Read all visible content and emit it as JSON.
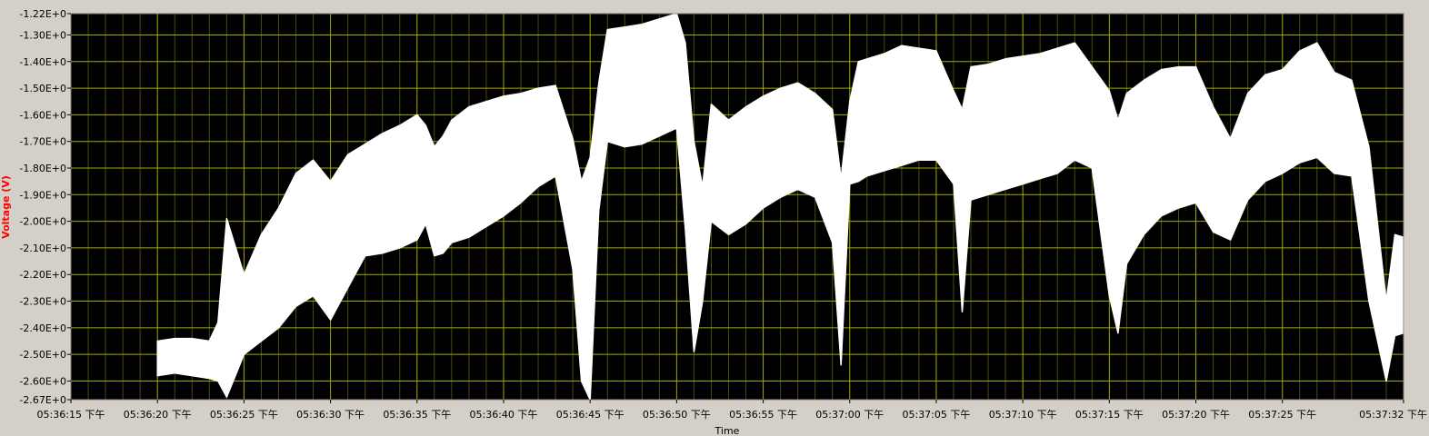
{
  "colors": {
    "frame": "#d4d0c8",
    "plot_background": "#000000",
    "grid_major": "#a8a800",
    "grid_minor": "#4a4a10",
    "trace": "#ffffff",
    "ylabel": "#ff0000",
    "axis_text": "#000000"
  },
  "chart_data": {
    "type": "area",
    "title": "",
    "xlabel": "Time",
    "ylabel": "Voltage (V)",
    "ylim": [
      -2.67,
      -1.22
    ],
    "xlim_seconds_past_17_36": [
      15,
      92
    ],
    "grid": true,
    "y_ticks": [
      "-1.22E+0",
      "-1.30E+0",
      "-1.40E+0",
      "-1.50E+0",
      "-1.60E+0",
      "-1.70E+0",
      "-1.80E+0",
      "-1.90E+0",
      "-2.00E+0",
      "-2.10E+0",
      "-2.20E+0",
      "-2.30E+0",
      "-2.40E+0",
      "-2.50E+0",
      "-2.60E+0",
      "-2.67E+0"
    ],
    "x_ticks": [
      "05:36:15 下午",
      "05:36:20 下午",
      "05:36:25 下午",
      "05:36:30 下午",
      "05:36:35 下午",
      "05:36:40 下午",
      "05:36:45 下午",
      "05:36:50 下午",
      "05:36:55 下午",
      "05:37:00 下午",
      "05:37:05 下午",
      "05:37:10 下午",
      "05:37:15 下午",
      "05:37:20 下午",
      "05:37:25 下午",
      "05:37:32 下午"
    ],
    "series": [
      {
        "x": [
          20,
          21,
          22,
          23,
          23.5,
          24,
          25,
          26,
          27,
          28,
          29,
          30,
          31,
          32,
          33,
          34,
          35,
          35.5,
          36,
          36.5,
          37,
          38,
          39,
          40,
          41,
          42,
          43,
          44,
          44.5,
          45,
          45.5,
          46,
          47,
          48,
          49,
          50,
          50.5,
          51,
          51.5,
          52,
          53,
          54,
          55,
          56,
          57,
          58,
          59,
          59.5,
          60,
          60.5,
          61,
          62,
          63,
          64,
          65,
          66,
          66.5,
          67,
          68,
          69,
          70,
          71,
          72,
          73,
          74,
          75,
          75.5,
          76,
          77,
          78,
          79,
          80,
          81,
          82,
          83,
          84,
          85,
          86,
          87,
          88,
          89,
          90,
          91,
          91.5,
          92
        ],
        "upper": [
          -2.45,
          -2.44,
          -2.44,
          -2.45,
          -2.38,
          -1.99,
          -2.2,
          -2.05,
          -1.95,
          -1.82,
          -1.77,
          -1.85,
          -1.75,
          -1.71,
          -1.67,
          -1.64,
          -1.6,
          -1.64,
          -1.72,
          -1.68,
          -1.62,
          -1.57,
          -1.55,
          -1.53,
          -1.52,
          -1.5,
          -1.49,
          -1.69,
          -1.85,
          -1.76,
          -1.48,
          -1.28,
          -1.27,
          -1.26,
          -1.24,
          -1.22,
          -1.33,
          -1.7,
          -1.87,
          -1.56,
          -1.62,
          -1.57,
          -1.53,
          -1.5,
          -1.48,
          -1.52,
          -1.58,
          -1.84,
          -1.55,
          -1.4,
          -1.39,
          -1.37,
          -1.34,
          -1.35,
          -1.36,
          -1.51,
          -1.58,
          -1.42,
          -1.41,
          -1.39,
          -1.38,
          -1.37,
          -1.35,
          -1.33,
          -1.42,
          -1.51,
          -1.62,
          -1.52,
          -1.47,
          -1.43,
          -1.42,
          -1.42,
          -1.57,
          -1.69,
          -1.52,
          -1.45,
          -1.43,
          -1.36,
          -1.33,
          -1.44,
          -1.47,
          -1.72,
          -2.3,
          -2.05,
          -2.06
        ],
        "lower": [
          -2.58,
          -2.57,
          -2.58,
          -2.59,
          -2.6,
          -2.66,
          -2.5,
          -2.45,
          -2.4,
          -2.32,
          -2.28,
          -2.37,
          -2.25,
          -2.13,
          -2.12,
          -2.1,
          -2.07,
          -2.01,
          -2.13,
          -2.12,
          -2.08,
          -2.06,
          -2.02,
          -1.98,
          -1.93,
          -1.87,
          -1.83,
          -2.18,
          -2.6,
          -2.67,
          -1.96,
          -1.7,
          -1.72,
          -1.71,
          -1.68,
          -1.65,
          -2.03,
          -2.49,
          -2.3,
          -2.0,
          -2.05,
          -2.01,
          -1.95,
          -1.91,
          -1.88,
          -1.91,
          -2.08,
          -2.54,
          -1.86,
          -1.85,
          -1.83,
          -1.81,
          -1.79,
          -1.77,
          -1.77,
          -1.86,
          -2.34,
          -1.92,
          -1.9,
          -1.88,
          -1.86,
          -1.84,
          -1.82,
          -1.77,
          -1.8,
          -2.28,
          -2.42,
          -2.16,
          -2.05,
          -1.98,
          -1.95,
          -1.93,
          -2.04,
          -2.07,
          -1.92,
          -1.85,
          -1.82,
          -1.78,
          -1.76,
          -1.82,
          -1.83,
          -2.3,
          -2.6,
          -2.43,
          -2.42
        ]
      }
    ]
  }
}
